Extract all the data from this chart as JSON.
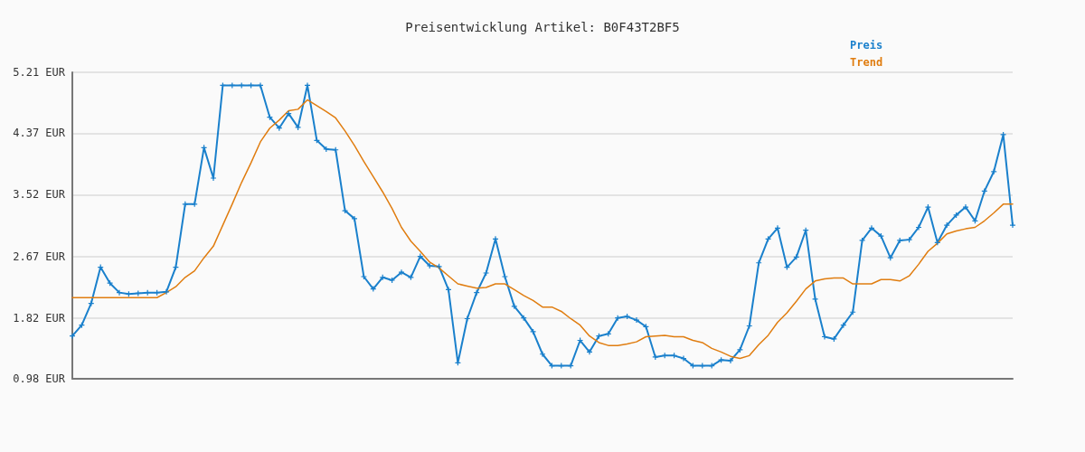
{
  "chart_data": {
    "type": "line",
    "title": "Preisentwicklung Artikel: B0F43T2BF5",
    "categories": [
      null,
      null,
      null,
      null,
      null,
      null,
      null,
      null,
      null,
      null,
      null,
      null,
      null,
      null,
      null,
      null,
      null,
      null,
      null,
      null,
      null,
      null,
      null,
      null,
      null,
      null,
      null,
      null,
      null,
      null,
      null,
      null,
      null,
      null,
      null,
      null,
      null,
      null,
      null,
      null,
      null,
      null,
      null,
      null,
      null,
      null,
      null,
      null,
      null,
      null,
      null,
      null,
      null,
      null,
      null,
      null,
      null,
      null,
      null,
      null,
      null,
      null,
      null,
      null,
      null,
      null,
      null,
      null,
      null,
      null,
      null,
      null,
      null,
      null,
      null,
      null,
      null,
      null,
      null,
      null,
      null,
      null,
      null,
      null,
      null,
      null,
      null,
      null,
      null,
      null,
      null,
      null,
      null,
      null,
      null,
      null,
      null,
      null,
      null,
      null,
      null
    ],
    "series": [
      {
        "name": "Preis",
        "color": "#1a80cc",
        "marker": "cross",
        "values": [
          1.57,
          1.72,
          2.02,
          2.52,
          2.3,
          2.17,
          2.15,
          2.16,
          2.17,
          2.17,
          2.18,
          2.52,
          3.39,
          3.39,
          4.17,
          3.75,
          5.03,
          5.03,
          5.03,
          5.03,
          5.03,
          4.59,
          4.44,
          4.64,
          4.45,
          5.03,
          4.27,
          4.15,
          4.14,
          3.3,
          3.19,
          2.39,
          2.22,
          2.38,
          2.34,
          2.45,
          2.38,
          2.67,
          2.54,
          2.53,
          2.21,
          1.2,
          1.81,
          2.17,
          2.44,
          2.91,
          2.39,
          1.98,
          1.82,
          1.63,
          1.32,
          1.16,
          1.16,
          1.16,
          1.51,
          1.35,
          1.57,
          1.6,
          1.82,
          1.84,
          1.79,
          1.7,
          1.28,
          1.3,
          1.3,
          1.26,
          1.16,
          1.16,
          1.16,
          1.24,
          1.23,
          1.38,
          1.71,
          2.58,
          2.91,
          3.06,
          2.52,
          2.66,
          3.03,
          2.08,
          1.56,
          1.53,
          1.72,
          1.9,
          2.89,
          3.06,
          2.95,
          2.65,
          2.89,
          2.9,
          3.07,
          3.35,
          2.86,
          3.1,
          3.24,
          3.35,
          3.16,
          3.57,
          3.84,
          4.35,
          3.1
        ]
      },
      {
        "name": "Trend",
        "color": "#e07d10",
        "marker": "none",
        "values": [
          2.1,
          2.1,
          2.1,
          2.1,
          2.1,
          2.1,
          2.1,
          2.1,
          2.1,
          2.1,
          2.17,
          2.25,
          2.38,
          2.47,
          2.65,
          2.81,
          3.1,
          3.39,
          3.69,
          3.96,
          4.25,
          4.44,
          4.55,
          4.68,
          4.7,
          4.83,
          4.75,
          4.67,
          4.58,
          4.4,
          4.2,
          3.98,
          3.77,
          3.56,
          3.33,
          3.07,
          2.88,
          2.74,
          2.59,
          2.51,
          2.4,
          2.29,
          2.26,
          2.23,
          2.24,
          2.29,
          2.29,
          2.21,
          2.13,
          2.06,
          1.97,
          1.97,
          1.91,
          1.81,
          1.72,
          1.57,
          1.48,
          1.44,
          1.44,
          1.46,
          1.49,
          1.56,
          1.57,
          1.58,
          1.56,
          1.56,
          1.51,
          1.48,
          1.4,
          1.35,
          1.29,
          1.26,
          1.3,
          1.45,
          1.58,
          1.76,
          1.89,
          2.05,
          2.22,
          2.33,
          2.36,
          2.37,
          2.37,
          2.29,
          2.29,
          2.29,
          2.35,
          2.35,
          2.33,
          2.4,
          2.56,
          2.74,
          2.85,
          2.98,
          3.02,
          3.05,
          3.07,
          3.16,
          3.27,
          3.39,
          3.39
        ]
      }
    ],
    "ylim": [
      0.98,
      5.21
    ],
    "yticks": [
      {
        "value": 0.98,
        "label": "0.98 EUR"
      },
      {
        "value": 1.82,
        "label": "1.82 EUR"
      },
      {
        "value": 2.67,
        "label": "2.67 EUR"
      },
      {
        "value": 3.52,
        "label": "3.52 EUR"
      },
      {
        "value": 4.37,
        "label": "4.37 EUR"
      },
      {
        "value": 5.21,
        "label": "5.21 EUR"
      }
    ],
    "grid": "y",
    "legend": "top right",
    "line_style": "solid"
  }
}
